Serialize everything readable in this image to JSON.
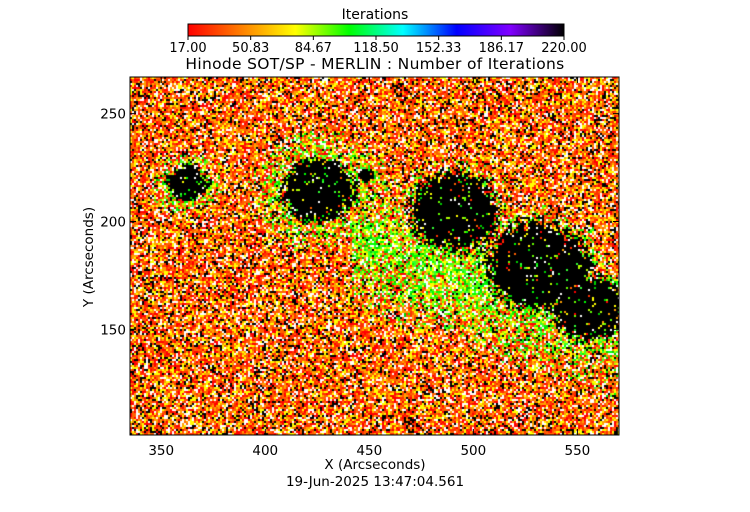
{
  "chart_data": {
    "type": "heatmap",
    "title": "Hinode SOT/SP - MERLIN : Number of Iterations",
    "xlabel": "X (Arcseconds)",
    "ylabel": "Y (Arcseconds)",
    "xlim": [
      335,
      570
    ],
    "ylim": [
      101,
      267
    ],
    "x_ticks": [
      350,
      400,
      450,
      500,
      550
    ],
    "y_ticks": [
      150,
      200,
      250
    ],
    "colorbar": {
      "title": "Iterations",
      "min": 17.0,
      "max": 220.0,
      "tick_labels": [
        "17.00",
        "50.83",
        "84.67",
        "118.50",
        "152.33",
        "186.17",
        "220.00"
      ],
      "colormap": [
        "#ff0000",
        "#ff8000",
        "#ffff00",
        "#00ff00",
        "#00ffff",
        "#0000ff",
        "#8000ff",
        "#000000"
      ]
    },
    "field": {
      "background_colors": [
        "#000000",
        "#ffffff",
        "#ff0000",
        "#ff6000",
        "#ffa000",
        "#ffff00",
        "#ff3000"
      ],
      "active_colors": [
        "#00ff00",
        "#33ff33",
        "#66ff00",
        "#b0ff00",
        "#ffff00",
        "#00d000",
        "#ffffff"
      ],
      "dark_core_color": "#000000",
      "regions": [
        {
          "name": "sunspot-left",
          "x": 362,
          "y": 218,
          "radius": 10,
          "penumbra_radius": 19
        },
        {
          "name": "sunspot-main",
          "x": 425,
          "y": 215,
          "radius": 18,
          "penumbra_radius": 36
        },
        {
          "name": "pore-a",
          "x": 448,
          "y": 222,
          "radius": 4,
          "penumbra_radius": 8
        },
        {
          "name": "plage-band-1",
          "x": 490,
          "y": 205,
          "radius": 22,
          "penumbra_radius": 30
        },
        {
          "name": "plage-band-2",
          "x": 530,
          "y": 180,
          "radius": 25,
          "penumbra_radius": 35
        },
        {
          "name": "plage-band-3",
          "x": 555,
          "y": 160,
          "radius": 18,
          "penumbra_radius": 24
        },
        {
          "name": "pore-b",
          "x": 550,
          "y": 180,
          "radius": 6,
          "penumbra_radius": 10
        }
      ]
    }
  },
  "timestamp": "19-Jun-2025 13:47:04.561"
}
